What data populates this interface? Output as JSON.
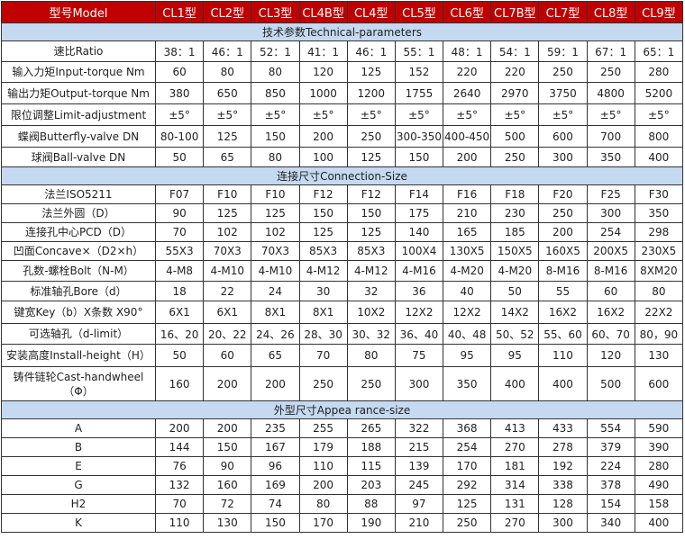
{
  "header": {
    "label": "型号Model",
    "models": [
      "CL1型",
      "CL2型",
      "CL3型",
      "CL4B型",
      "CL4型",
      "CL5型",
      "CL6型",
      "CL7B型",
      "CL7型",
      "CL8型",
      "CL9型"
    ]
  },
  "sections": [
    {
      "title": "技术参数Technical-parameters",
      "rows": [
        {
          "label": "速比Ratio",
          "values": [
            "38：1",
            "46：1",
            "52：1",
            "41：1",
            "46：1",
            "55：1",
            "48：1",
            "54：1",
            "59：1",
            "67：1",
            "65：1"
          ]
        },
        {
          "label": "输入力矩Input-torque Nm",
          "values": [
            "60",
            "80",
            "80",
            "120",
            "125",
            "152",
            "220",
            "220",
            "250",
            "250",
            "280"
          ]
        },
        {
          "label": "输出力矩Output-torque Nm",
          "values": [
            "380",
            "650",
            "850",
            "1000",
            "1200",
            "1755",
            "2640",
            "2970",
            "3750",
            "4800",
            "5200"
          ]
        },
        {
          "label": "限位调整Limit-adjustment",
          "values": [
            "±5°",
            "±5°",
            "±5°",
            "±5°",
            "±5°",
            "±5°",
            "±5°",
            "±5°",
            "±5°",
            "±5°",
            "±5°"
          ]
        },
        {
          "label": "蝶阀Butterfly-valve DN",
          "values": [
            "80-100",
            "125",
            "150",
            "200",
            "250",
            "300-350",
            "400-450",
            "500",
            "600",
            "700",
            "800"
          ]
        },
        {
          "label": "球阀Ball-valve DN",
          "values": [
            "50",
            "65",
            "80",
            "100",
            "125",
            "150",
            "200",
            "250",
            "300",
            "350",
            "400"
          ]
        }
      ]
    },
    {
      "title": "连接尺寸Connection-Size",
      "rows": [
        {
          "label": "法兰ISO5211",
          "values": [
            "F07",
            "F10",
            "F10",
            "F12",
            "F12",
            "F14",
            "F16",
            "F18",
            "F20",
            "F25",
            "F30"
          ]
        },
        {
          "label": "法兰外圆（D）",
          "values": [
            "90",
            "125",
            "125",
            "150",
            "150",
            "175",
            "210",
            "230",
            "250",
            "300",
            "350"
          ]
        },
        {
          "label": "连接孔中心PCD（D）",
          "values": [
            "70",
            "102",
            "102",
            "125",
            "125",
            "140",
            "165",
            "185",
            "200",
            "254",
            "298"
          ]
        },
        {
          "label": "凹面Concave×（D2×h）",
          "values": [
            "55X3",
            "70X3",
            "70X3",
            "85X3",
            "85X3",
            "100X4",
            "130X5",
            "150X5",
            "160X5",
            "200X5",
            "230X5"
          ]
        },
        {
          "label": "孔数-螺栓Bolt（N-M）",
          "values": [
            "4-M8",
            "4-M10",
            "4-M10",
            "4-M12",
            "4-M12",
            "4-M16",
            "4-M20",
            "4-M20",
            "8-M16",
            "8-M16",
            "8XM20"
          ]
        },
        {
          "label": "标准轴孔Bore（d）",
          "values": [
            "18",
            "22",
            "24",
            "30",
            "32",
            "36",
            "40",
            "50",
            "55",
            "60",
            "80"
          ]
        },
        {
          "label": "键宽Key（b）X条数 X90°",
          "values": [
            "6X1",
            "6X1",
            "8X1",
            "8X1",
            "10X2",
            "12X2",
            "12X2",
            "14X2",
            "16X2",
            "16X2",
            "22X2"
          ]
        },
        {
          "label": "可选轴孔（d-limit）",
          "values": [
            "16、20",
            "20、22",
            "24、26",
            "28、30",
            "30、32",
            "36、40",
            "40、48",
            "50、52",
            "55、60",
            "60、70",
            "80，90"
          ]
        },
        {
          "label": "安装高度Install-height（H）",
          "values": [
            "50",
            "60",
            "65",
            "70",
            "80",
            "75",
            "95",
            "95",
            "110",
            "120",
            "130"
          ]
        },
        {
          "label": "铸件链轮Cast-handwheel（Φ）",
          "values": [
            "160",
            "200",
            "200",
            "250",
            "250",
            "300",
            "350",
            "400",
            "400",
            "500",
            "600"
          ]
        }
      ]
    },
    {
      "title": "外型尺寸Appea rance-size",
      "rows": [
        {
          "label": "A",
          "values": [
            "200",
            "200",
            "235",
            "255",
            "265",
            "322",
            "368",
            "413",
            "433",
            "554",
            "590"
          ]
        },
        {
          "label": "B",
          "values": [
            "144",
            "150",
            "167",
            "179",
            "188",
            "215",
            "254",
            "270",
            "278",
            "379",
            "390"
          ]
        },
        {
          "label": "E",
          "values": [
            "76",
            "90",
            "96",
            "110",
            "115",
            "139",
            "170",
            "181",
            "192",
            "224",
            "280"
          ]
        },
        {
          "label": "G",
          "values": [
            "132",
            "160",
            "169",
            "200",
            "203",
            "245",
            "292",
            "314",
            "338",
            "378",
            "490"
          ]
        },
        {
          "label": "H2",
          "values": [
            "70",
            "72",
            "74",
            "80",
            "88",
            "97",
            "125",
            "131",
            "128",
            "154",
            "158"
          ]
        },
        {
          "label": "K",
          "values": [
            "110",
            "130",
            "150",
            "170",
            "190",
            "210",
            "250",
            "270",
            "300",
            "340",
            "400"
          ]
        }
      ]
    }
  ],
  "colors": {
    "header_bg": "#c00000",
    "section_bg": "#c5d9f1"
  }
}
